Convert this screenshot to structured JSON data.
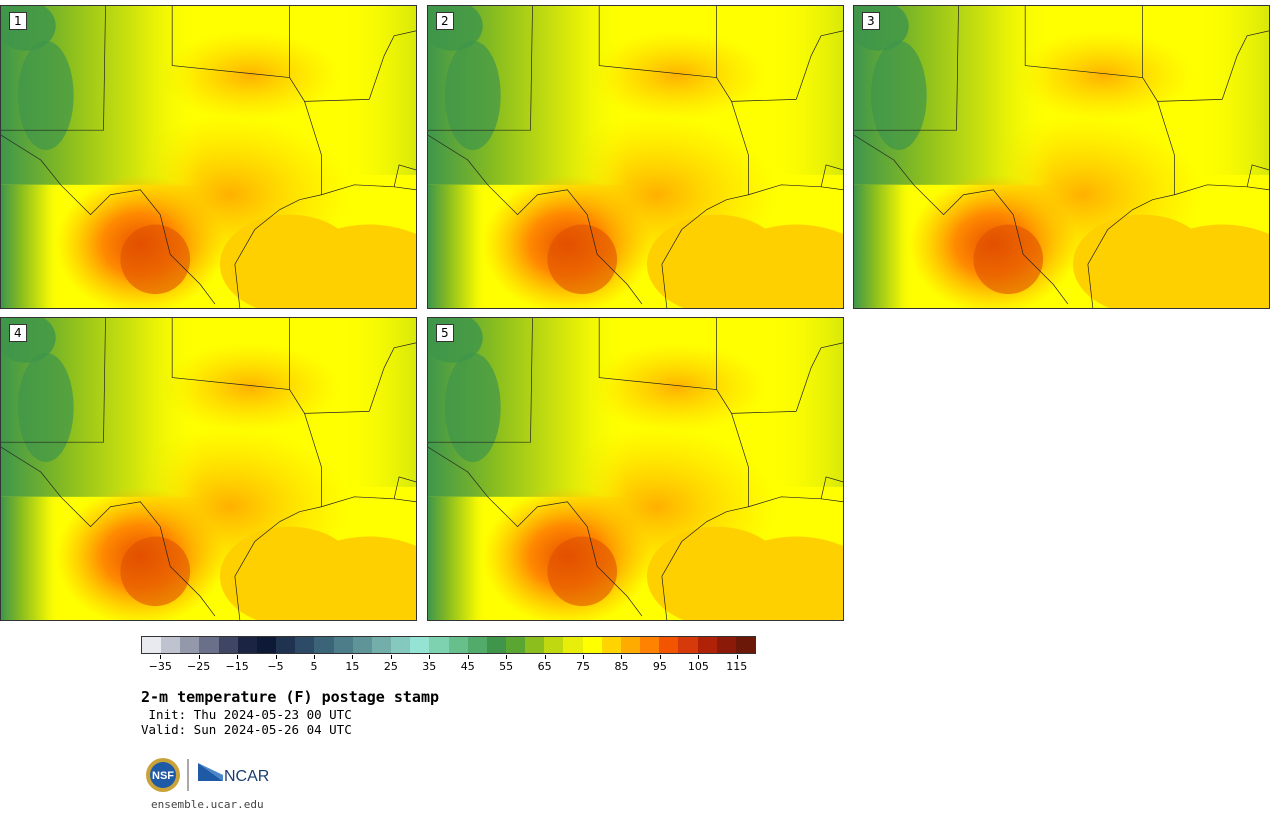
{
  "panels": [
    {
      "label": "1"
    },
    {
      "label": "2"
    },
    {
      "label": "3"
    },
    {
      "label": "4"
    },
    {
      "label": "5"
    }
  ],
  "colorbar": {
    "colors": [
      "#e8eaf0",
      "#bfc3d0",
      "#9398ab",
      "#6a7089",
      "#3f4664",
      "#1b2442",
      "#0e1a35",
      "#1f3350",
      "#2d4a66",
      "#3b6479",
      "#4d7d89",
      "#5f9598",
      "#73aeab",
      "#84c8be",
      "#95e3d2",
      "#7fd2b0",
      "#67bf8c",
      "#52aa6b",
      "#3f964b",
      "#5aa632",
      "#8cbf1e",
      "#bfd80f",
      "#e8ee0a",
      "#ffff00",
      "#ffd400",
      "#ffab00",
      "#ff8200",
      "#f25400",
      "#d63a0a",
      "#b02208",
      "#8c1a08",
      "#6b1808"
    ],
    "tick_labels": [
      "−35",
      "−25",
      "−15",
      "−5",
      "5",
      "15",
      "25",
      "35",
      "45",
      "55",
      "65",
      "75",
      "85",
      "95",
      "105",
      "115"
    ],
    "min": -40,
    "max": 120
  },
  "title": "2-m temperature (F) postage stamp",
  "init": " Init: Thu 2024-05-23 00 UTC",
  "valid": "Valid: Sun 2024-05-26 04 UTC",
  "logos": {
    "nsf": "NSF",
    "ncar": "NCAR"
  },
  "site": "ensemble.ucar.edu"
}
